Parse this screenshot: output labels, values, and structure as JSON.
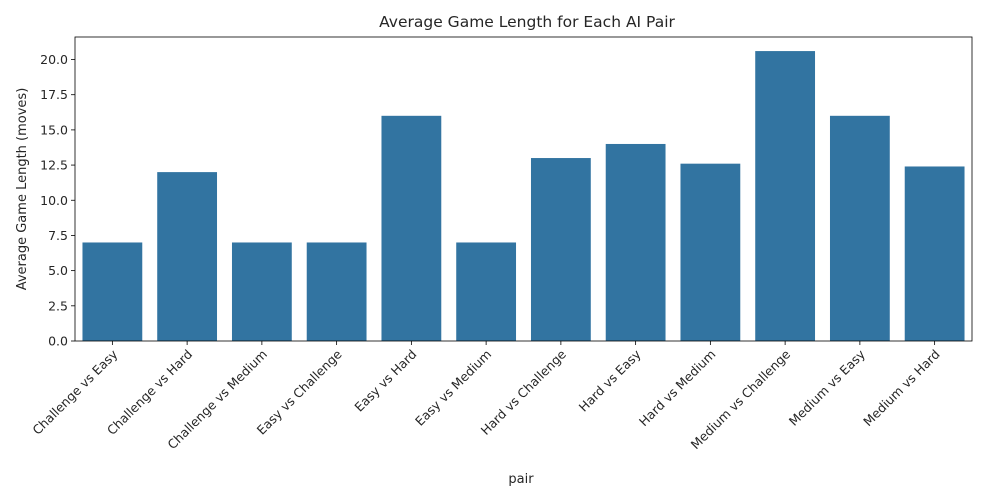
{
  "chart_data": {
    "type": "bar",
    "title": "Average Game Length for Each AI Pair",
    "xlabel": "pair",
    "ylabel": "Average Game Length (moves)",
    "ylim": [
      0,
      21.6
    ],
    "yticks": [
      "0.0",
      "2.5",
      "5.0",
      "7.5",
      "10.0",
      "12.5",
      "15.0",
      "17.5",
      "20.0"
    ],
    "categories": [
      "Challenge vs Easy",
      "Challenge vs Hard",
      "Challenge vs Medium",
      "Easy vs Challenge",
      "Easy vs Hard",
      "Easy vs Medium",
      "Hard vs Challenge",
      "Hard vs Easy",
      "Hard vs Medium",
      "Medium vs Challenge",
      "Medium vs Easy",
      "Medium vs Hard"
    ],
    "values": [
      7.0,
      12.0,
      7.0,
      7.0,
      16.0,
      7.0,
      13.0,
      14.0,
      12.6,
      20.6,
      16.0,
      12.4
    ],
    "bar_color": "#3274a1",
    "grid": false,
    "legend": "none"
  }
}
